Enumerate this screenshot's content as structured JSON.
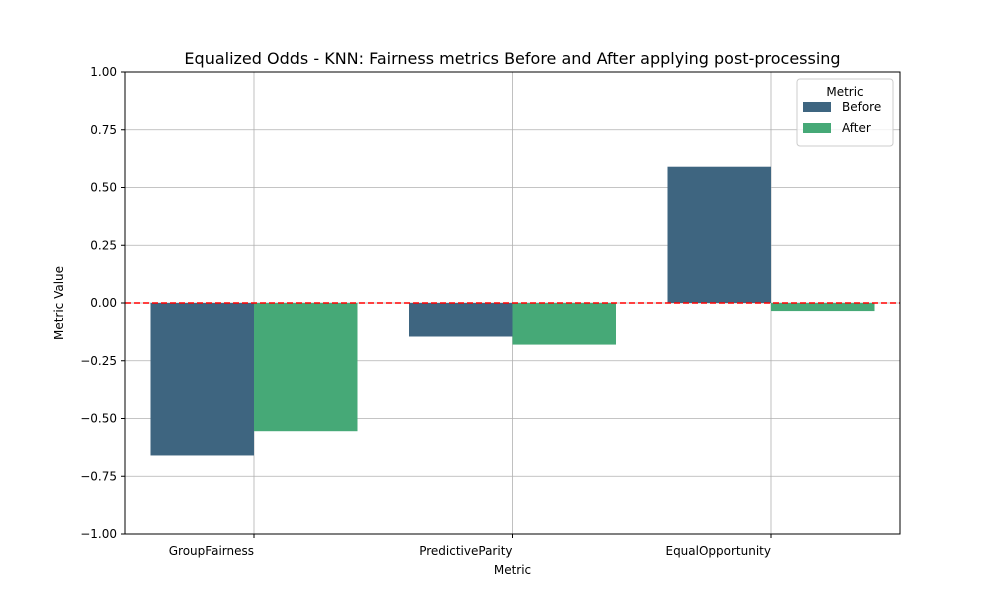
{
  "chart_data": {
    "type": "bar",
    "title": "Equalized Odds - KNN: Fairness metrics Before and After applying post-processing",
    "xlabel": "Metric",
    "ylabel": "Metric Value",
    "categories": [
      "GroupFairness",
      "PredictiveParity",
      "EqualOpportunity"
    ],
    "series": [
      {
        "name": "Before",
        "values": [
          -0.66,
          -0.145,
          0.59
        ],
        "color": "#3e6580"
      },
      {
        "name": "After",
        "values": [
          -0.555,
          -0.18,
          -0.035
        ],
        "color": "#46a977"
      }
    ],
    "ylim": [
      -1.0,
      1.0
    ],
    "yticks": [
      "−1.00",
      "−0.75",
      "−0.50",
      "−0.25",
      "0.00",
      "0.25",
      "0.50",
      "0.75",
      "1.00"
    ],
    "ytick_values": [
      -1.0,
      -0.75,
      -0.5,
      -0.25,
      0.0,
      0.25,
      0.5,
      0.75,
      1.0
    ],
    "grid": true,
    "reference_line": {
      "y": 0.0,
      "color": "#ff0000",
      "style": "dashed"
    },
    "legend": {
      "title": "Metric",
      "placement": "top-right"
    }
  }
}
